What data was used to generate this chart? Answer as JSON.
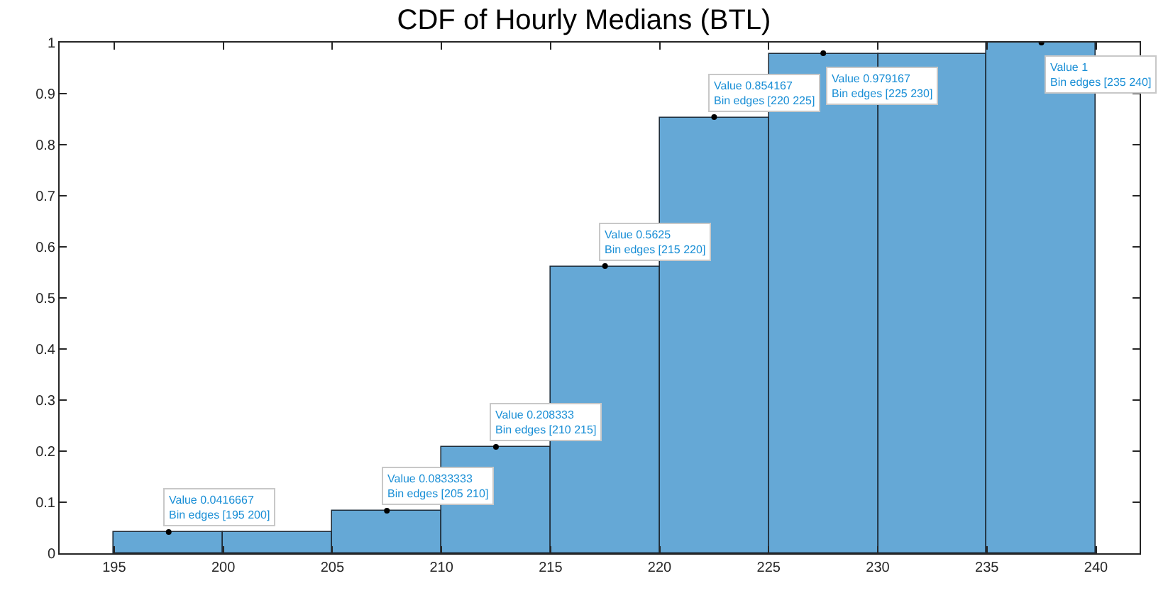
{
  "chart_data": {
    "type": "histogram",
    "title": "CDF of Hourly Medians (BTL)",
    "bins": [
      195,
      200,
      205,
      210,
      215,
      220,
      225,
      230,
      235,
      240
    ],
    "values": [
      0.0416667,
      0.0416667,
      0.0833333,
      0.208333,
      0.5625,
      0.854167,
      0.979167,
      0.979167,
      1
    ],
    "color": "#65a8d6",
    "xlim": [
      192.5,
      242
    ],
    "xticks": [
      195,
      200,
      205,
      210,
      215,
      220,
      225,
      230,
      235,
      240
    ],
    "ylim": [
      0,
      1
    ],
    "yticks": [
      0,
      0.1,
      0.2,
      0.3,
      0.4,
      0.5,
      0.6,
      0.7,
      0.8,
      0.9,
      1
    ],
    "annotations": [
      {
        "text": "Value 0.0416667\nBin edges [195 200]",
        "x": 197.5,
        "y": 0.0416667
      },
      {
        "text": "Value 0.0833333\nBin edges [205 210]",
        "x": 207.5,
        "y": 0.0833333
      },
      {
        "text": "Value 0.208333\nBin edges [210 215]",
        "x": 212.5,
        "y": 0.208333
      },
      {
        "text": "Value 0.5625\nBin edges [215 220]",
        "x": 217.5,
        "y": 0.5625
      },
      {
        "text": "Value 0.854167\nBin edges [220 225]",
        "x": 222.5,
        "y": 0.854167
      },
      {
        "text": "Value 0.979167\nBin edges [225 230]",
        "x": 227.5,
        "y": 0.979167
      },
      {
        "text": "Value 1\nBin edges [235 240]",
        "x": 237.5,
        "y": 1
      }
    ]
  }
}
